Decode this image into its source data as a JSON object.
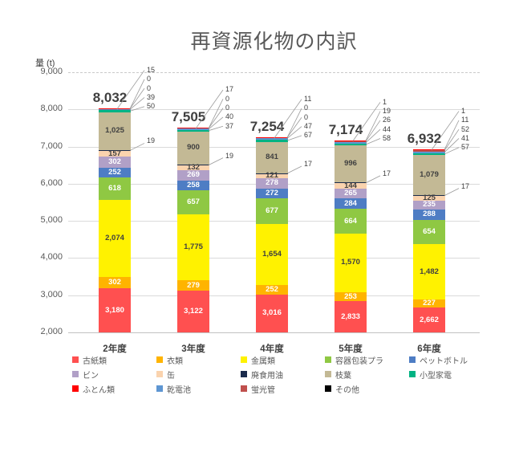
{
  "title": "再資源化物の内訳",
  "y_axis": {
    "unit_label": "量 (t)"
  },
  "chart_data": {
    "type": "bar",
    "stacked": true,
    "title": "再資源化物の内訳",
    "ylabel": "量 (t)",
    "ylim": [
      2000,
      9000
    ],
    "y_ticks": [
      9000,
      8000,
      7000,
      6000,
      5000,
      4000,
      3000,
      2000
    ],
    "grid": true,
    "legend_position": "bottom",
    "categories": [
      "2年度",
      "3年度",
      "4年度",
      "5年度",
      "6年度"
    ],
    "totals": [
      8032,
      7505,
      7254,
      7174,
      6932
    ],
    "series": [
      {
        "name": "古紙類",
        "color": "#FF5050",
        "label_color": "#ffffff",
        "values": [
          3180,
          3122,
          3016,
          2833,
          2662
        ]
      },
      {
        "name": "衣類",
        "color": "#FFB400",
        "label_color": "#ffffff",
        "values": [
          302,
          279,
          252,
          253,
          227
        ]
      },
      {
        "name": "金属類",
        "color": "#FFF200",
        "label_color": "#404040",
        "values": [
          2074,
          1775,
          1654,
          1570,
          1482
        ]
      },
      {
        "name": "容器包装プラ",
        "color": "#8FC843",
        "label_color": "#ffffff",
        "values": [
          618,
          657,
          677,
          664,
          654
        ]
      },
      {
        "name": "ペットボトル",
        "color": "#4E7DC4",
        "label_color": "#ffffff",
        "values": [
          252,
          258,
          272,
          284,
          288
        ]
      },
      {
        "name": "ビン",
        "color": "#B1A0C7",
        "label_color": "#ffffff",
        "values": [
          302,
          269,
          278,
          265,
          235
        ]
      },
      {
        "name": "缶",
        "color": "#FAD3AE",
        "label_color": "#404040",
        "values": [
          157,
          132,
          121,
          144,
          125
        ]
      },
      {
        "name": "廃食用油",
        "color": "#1A2B4C",
        "callout": "side",
        "values": [
          19,
          19,
          17,
          17,
          17
        ]
      },
      {
        "name": "枝葉",
        "color": "#C3B995",
        "label_color": "#404040",
        "values": [
          1025,
          900,
          841,
          996,
          1079
        ]
      },
      {
        "name": "小型家電",
        "color": "#00B383",
        "callout": "top",
        "values": [
          50,
          37,
          67,
          58,
          57
        ]
      },
      {
        "name": "乾電池",
        "color": "#5E96D2",
        "callout": "top",
        "values": [
          39,
          40,
          47,
          44,
          41
        ]
      },
      {
        "name": "蛍光管",
        "color": "#C0504D",
        "callout": "top",
        "values": [
          0,
          0,
          0,
          26,
          52
        ]
      },
      {
        "name": "その他",
        "color": "#000000",
        "callout": "top",
        "values": [
          0,
          0,
          0,
          19,
          11
        ]
      },
      {
        "name": "ふとん類",
        "color": "#FF0000",
        "callout": "top",
        "values": [
          15,
          17,
          11,
          1,
          1
        ]
      }
    ],
    "legend": [
      {
        "label": "古紙類",
        "color": "#FF5050"
      },
      {
        "label": "衣類",
        "color": "#FFB400"
      },
      {
        "label": "金属類",
        "color": "#FFF200"
      },
      {
        "label": "容器包装プラ",
        "color": "#8FC843"
      },
      {
        "label": "ペットボトル",
        "color": "#4E7DC4"
      },
      {
        "label": "ビン",
        "color": "#B1A0C7"
      },
      {
        "label": "缶",
        "color": "#FAD3AE"
      },
      {
        "label": "廃食用油",
        "color": "#1A2B4C"
      },
      {
        "label": "枝葉",
        "color": "#C3B995"
      },
      {
        "label": "小型家電",
        "color": "#00B383"
      },
      {
        "label": "ふとん類",
        "color": "#FF0000"
      },
      {
        "label": "乾電池",
        "color": "#5E96D2"
      },
      {
        "label": "蛍光管",
        "color": "#C0504D"
      },
      {
        "label": "その他",
        "color": "#000000"
      }
    ]
  }
}
